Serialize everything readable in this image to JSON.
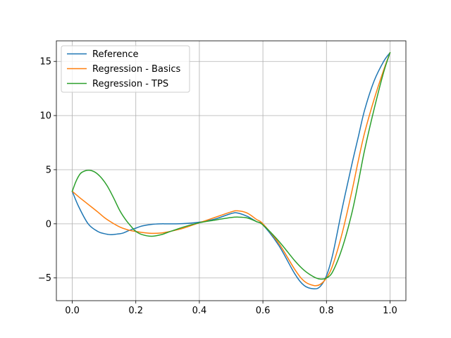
{
  "chart_data": {
    "type": "line",
    "title": "",
    "xlabel": "",
    "ylabel": "",
    "xlim": [
      -0.05,
      1.05
    ],
    "ylim": [
      -7.1,
      16.9
    ],
    "xticks": [
      0.0,
      0.2,
      0.4,
      0.6,
      0.8,
      1.0
    ],
    "xtick_labels": [
      "0.0",
      "0.2",
      "0.4",
      "0.6",
      "0.8",
      "1.0"
    ],
    "yticks": [
      -5,
      0,
      5,
      10,
      15
    ],
    "ytick_labels": [
      "−5",
      "0",
      "5",
      "10",
      "15"
    ],
    "grid": true,
    "legend_position": "top-left",
    "series": [
      {
        "name": "Reference",
        "color": "#1f77b4",
        "x": [
          0.0,
          0.02,
          0.05,
          0.08,
          0.1,
          0.12,
          0.14,
          0.16,
          0.18,
          0.2,
          0.22,
          0.25,
          0.28,
          0.3,
          0.35,
          0.4,
          0.45,
          0.5,
          0.52,
          0.55,
          0.58,
          0.6,
          0.65,
          0.7,
          0.73,
          0.76,
          0.78,
          0.8,
          0.82,
          0.85,
          0.88,
          0.9,
          0.92,
          0.95,
          0.98,
          1.0
        ],
        "y": [
          3.0,
          1.6,
          0.0,
          -0.7,
          -0.9,
          -1.0,
          -0.95,
          -0.85,
          -0.6,
          -0.4,
          -0.2,
          -0.05,
          0.0,
          0.0,
          0.02,
          0.15,
          0.45,
          0.95,
          1.0,
          0.7,
          0.2,
          -0.1,
          -2.0,
          -4.6,
          -5.7,
          -6.0,
          -5.8,
          -4.8,
          -2.8,
          1.5,
          5.5,
          8.0,
          10.5,
          13.2,
          15.0,
          15.8
        ]
      },
      {
        "name": "Regression - Basics",
        "color": "#ff7f0e",
        "x": [
          0.0,
          0.02,
          0.05,
          0.08,
          0.1,
          0.12,
          0.15,
          0.18,
          0.2,
          0.22,
          0.25,
          0.28,
          0.3,
          0.35,
          0.4,
          0.45,
          0.5,
          0.52,
          0.55,
          0.58,
          0.6,
          0.65,
          0.7,
          0.73,
          0.76,
          0.78,
          0.8,
          0.82,
          0.85,
          0.88,
          0.9,
          0.92,
          0.95,
          0.98,
          1.0
        ],
        "y": [
          3.0,
          2.5,
          1.8,
          1.1,
          0.6,
          0.2,
          -0.3,
          -0.6,
          -0.7,
          -0.8,
          -0.88,
          -0.85,
          -0.75,
          -0.4,
          0.1,
          0.6,
          1.1,
          1.2,
          1.0,
          0.4,
          0.0,
          -1.8,
          -4.2,
          -5.3,
          -5.7,
          -5.6,
          -5.0,
          -3.8,
          -0.8,
          3.0,
          5.8,
          8.4,
          11.5,
          14.2,
          15.8
        ]
      },
      {
        "name": "Regression - TPS",
        "color": "#2ca02c",
        "x": [
          0.0,
          0.01,
          0.02,
          0.03,
          0.05,
          0.07,
          0.09,
          0.11,
          0.13,
          0.15,
          0.17,
          0.19,
          0.2,
          0.22,
          0.25,
          0.28,
          0.3,
          0.35,
          0.4,
          0.45,
          0.5,
          0.52,
          0.55,
          0.58,
          0.6,
          0.65,
          0.7,
          0.73,
          0.76,
          0.78,
          0.8,
          0.82,
          0.85,
          0.88,
          0.9,
          0.92,
          0.95,
          0.98,
          1.0
        ],
        "y": [
          3.0,
          3.8,
          4.4,
          4.75,
          4.95,
          4.8,
          4.3,
          3.5,
          2.4,
          1.2,
          0.3,
          -0.4,
          -0.7,
          -1.0,
          -1.15,
          -1.0,
          -0.8,
          -0.3,
          0.1,
          0.35,
          0.58,
          0.62,
          0.55,
          0.2,
          -0.1,
          -1.6,
          -3.4,
          -4.3,
          -4.9,
          -5.1,
          -5.0,
          -4.4,
          -2.2,
          1.0,
          3.8,
          6.8,
          10.6,
          14.0,
          15.8
        ]
      }
    ]
  }
}
